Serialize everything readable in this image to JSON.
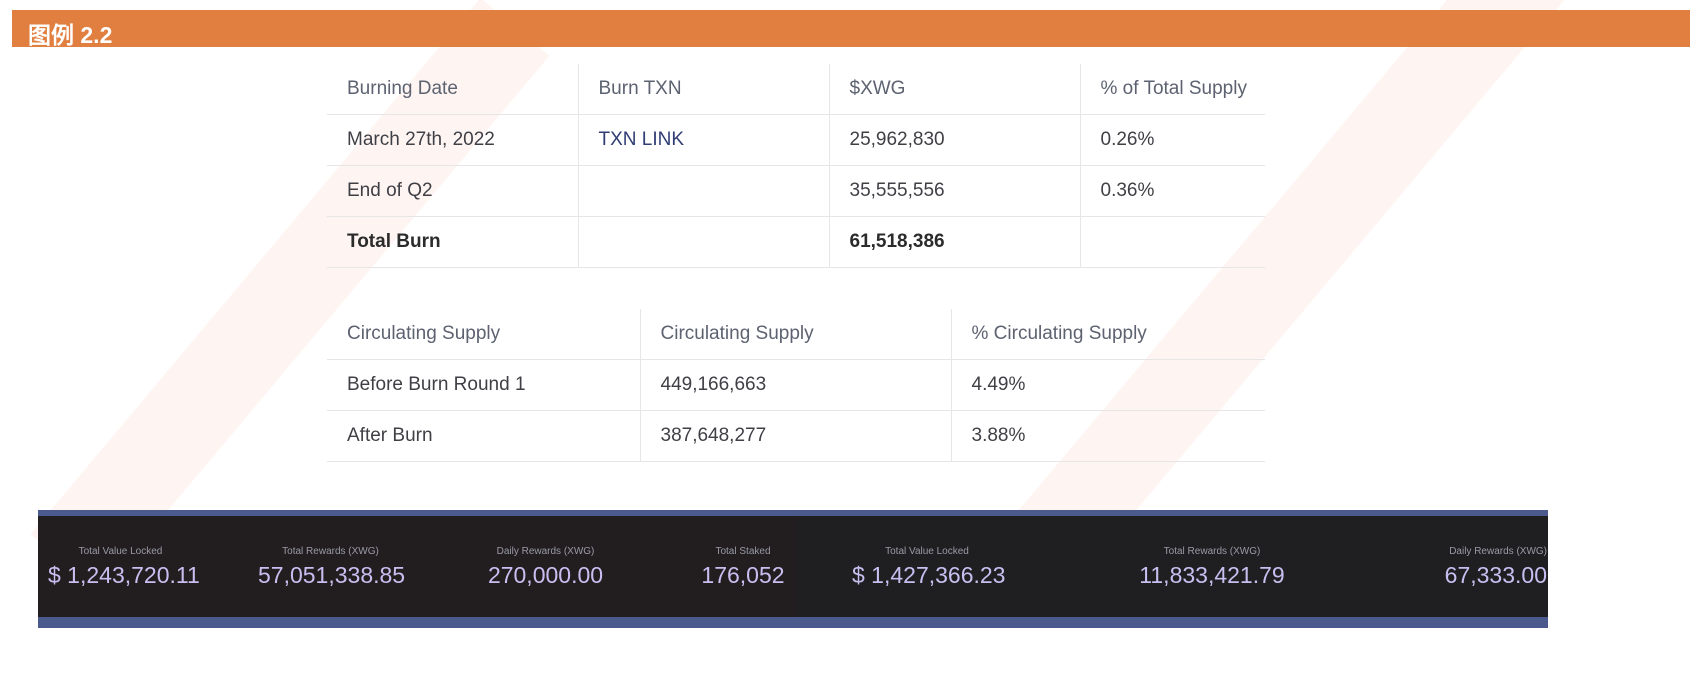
{
  "header": {
    "title": "图例 2.2",
    "color": "#e07f40"
  },
  "burn_table": {
    "headers": [
      "Burning Date",
      "Burn TXN",
      "$XWG",
      "% of Total Supply"
    ],
    "rows": [
      [
        "March 27th, 2022",
        "TXN LINK",
        "25,962,830",
        "0.26%"
      ],
      [
        "End of Q2",
        "",
        "35,555,556",
        "0.36%"
      ],
      [
        "Total Burn",
        "",
        "61,518,386",
        ""
      ]
    ]
  },
  "supply_table": {
    "headers": [
      "Circulating Supply",
      "Circulating Supply",
      "% Circulating Supply"
    ],
    "rows": [
      [
        "Before Burn Round 1",
        "449,166,663",
        "4.49%"
      ],
      [
        "After Burn",
        "387,648,277",
        "3.88%"
      ]
    ]
  },
  "stats": [
    {
      "label": "Total Value Locked",
      "value": "$ 1,243,720.11"
    },
    {
      "label": "Total Rewards (XWG)",
      "value": "57,051,338.85"
    },
    {
      "label": "Daily Rewards (XWG)",
      "value": "270,000.00"
    },
    {
      "label": "Total Staked",
      "value": "176,052"
    },
    {
      "label": "Total Value Locked",
      "value": "$ 1,427,366.23"
    },
    {
      "label": "Total Rewards (XWG)",
      "value": "11,833,421.79"
    },
    {
      "label": "Daily Rewards (XWG)",
      "value": "67,333.00"
    }
  ]
}
